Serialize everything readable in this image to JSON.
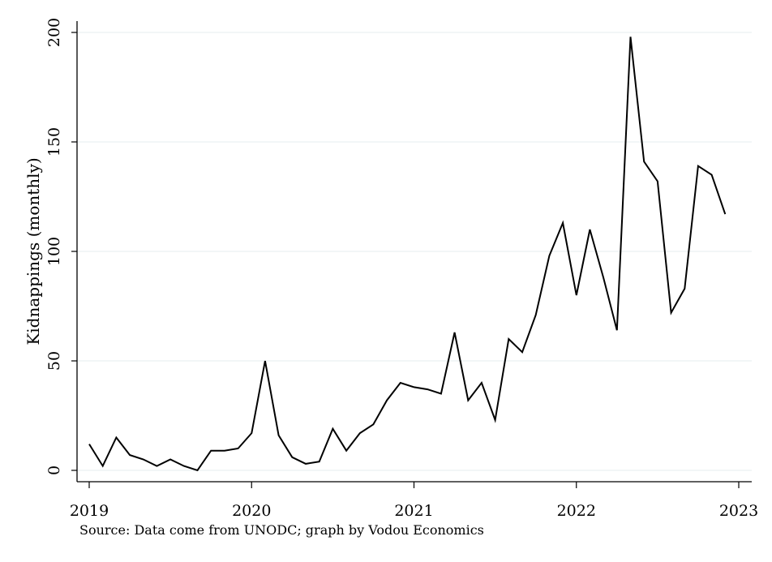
{
  "chart_data": {
    "type": "line",
    "ylabel": "Kidnappings (monthly)",
    "xlabel": "",
    "note": "Source: Data come from UNODC; graph by Vodou Economics",
    "x_ticks": [
      "2019",
      "2020",
      "2021",
      "2022",
      "2023"
    ],
    "y_ticks": [
      0,
      50,
      100,
      150,
      200
    ],
    "xlim": [
      "2019-01",
      "2023-01"
    ],
    "ylim": [
      0,
      200
    ],
    "grid": "horizontal",
    "line_color": "#000000",
    "grid_color": "#eaf0f2",
    "series": [
      {
        "x": [
          "2019-01",
          "2019-02",
          "2019-03",
          "2019-04",
          "2019-05",
          "2019-06",
          "2019-07",
          "2019-08",
          "2019-09",
          "2019-10",
          "2019-11",
          "2019-12",
          "2020-01",
          "2020-02",
          "2020-03",
          "2020-04",
          "2020-05",
          "2020-06",
          "2020-07",
          "2020-08",
          "2020-09",
          "2020-10",
          "2020-11",
          "2020-12",
          "2021-01",
          "2021-02",
          "2021-03",
          "2021-04",
          "2021-05",
          "2021-06",
          "2021-07",
          "2021-08",
          "2021-09",
          "2021-10",
          "2021-11",
          "2021-12",
          "2022-01",
          "2022-02",
          "2022-03",
          "2022-04",
          "2022-05",
          "2022-06",
          "2022-07",
          "2022-08",
          "2022-09",
          "2022-10",
          "2022-11",
          "2022-12"
        ],
        "values": [
          12,
          2,
          15,
          7,
          5,
          2,
          5,
          2,
          0,
          9,
          9,
          10,
          17,
          50,
          16,
          6,
          3,
          4,
          19,
          9,
          17,
          21,
          32,
          40,
          38,
          37,
          35,
          63,
          32,
          40,
          23,
          60,
          54,
          71,
          98,
          113,
          80,
          110,
          88,
          64,
          198,
          141,
          132,
          72,
          83,
          139,
          135,
          117
        ]
      }
    ]
  }
}
